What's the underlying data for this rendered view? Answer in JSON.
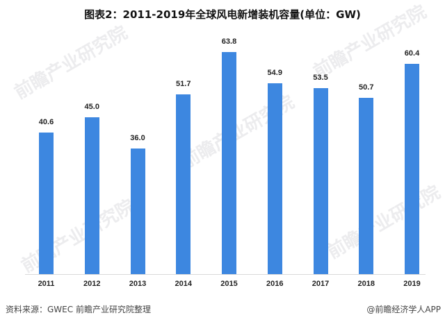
{
  "title": "图表2：2011-2019年全球风电新增装机容量(单位：GW)",
  "watermark": "前瞻产业研究院",
  "footer": {
    "source": "资料来源：GWEC 前瞻产业研究院整理",
    "credit": "@前瞻经济学人APP"
  },
  "colors": {
    "bar": "#3d87e0"
  },
  "chart_data": {
    "type": "bar",
    "title": "图表2：2011-2019年全球风电新增装机容量(单位：GW)",
    "xlabel": "",
    "ylabel": "GW",
    "categories": [
      "2011",
      "2012",
      "2013",
      "2014",
      "2015",
      "2016",
      "2017",
      "2018",
      "2019"
    ],
    "values": [
      40.6,
      45.0,
      36.0,
      51.7,
      63.8,
      54.9,
      53.5,
      50.7,
      60.4
    ],
    "value_labels": [
      "40.6",
      "45.0",
      "36.0",
      "51.7",
      "63.8",
      "54.9",
      "53.5",
      "50.7",
      "60.4"
    ],
    "ylim": [
      0,
      70
    ],
    "grid": false,
    "legend": null
  }
}
